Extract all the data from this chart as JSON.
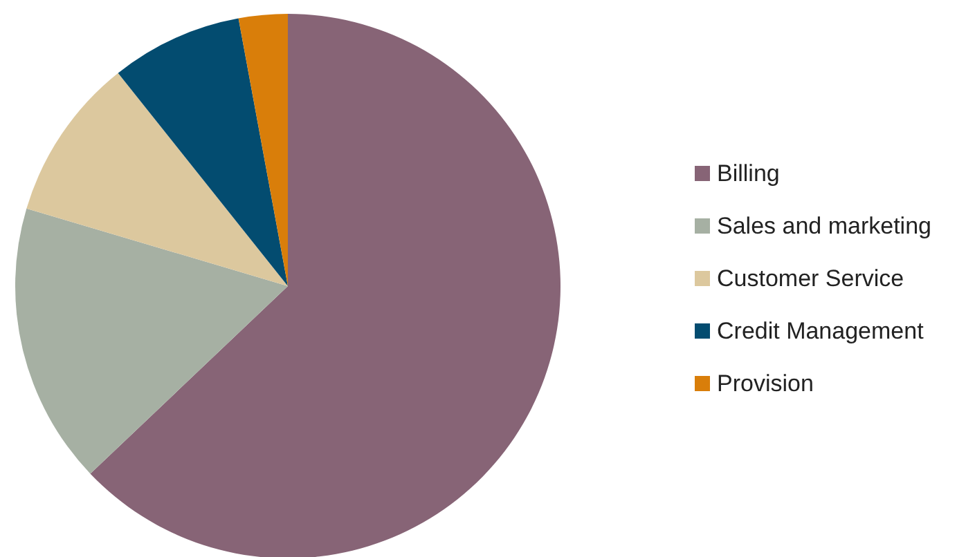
{
  "chart_data": {
    "type": "pie",
    "categories": [
      "Billing",
      "Sales and marketing",
      "Customer Service",
      "Credit Management",
      "Provision"
    ],
    "values": [
      62.9,
      16.7,
      9.7,
      7.8,
      2.9
    ],
    "colors": [
      "#876476",
      "#a6b0a3",
      "#dcc89e",
      "#034c70",
      "#d97e0a"
    ],
    "legend": "right"
  }
}
